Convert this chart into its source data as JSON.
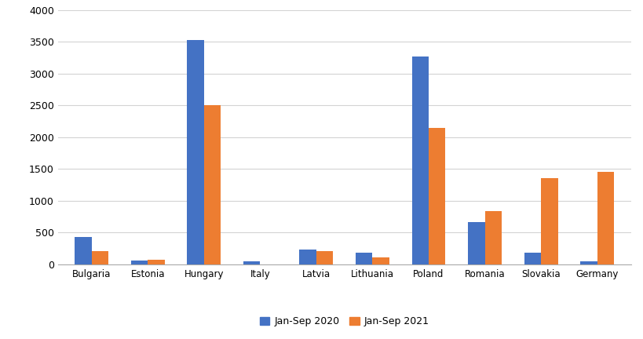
{
  "categories": [
    "Bulgaria",
    "Estonia",
    "Hungary",
    "Italy",
    "Latvia",
    "Lithuania",
    "Poland",
    "Romania",
    "Slovakia",
    "Germany"
  ],
  "jan_sep_2020": [
    430,
    65,
    3530,
    45,
    230,
    185,
    3270,
    670,
    180,
    55
  ],
  "jan_sep_2021": [
    205,
    70,
    2500,
    0,
    215,
    115,
    2150,
    840,
    1360,
    1460
  ],
  "color_2020": "#4472C4",
  "color_2021": "#ED7D31",
  "ylim": [
    0,
    4000
  ],
  "yticks": [
    0,
    500,
    1000,
    1500,
    2000,
    2500,
    3000,
    3500,
    4000
  ],
  "legend_2020": "Jan-Sep 2020",
  "legend_2021": "Jan-Sep 2021",
  "background_color": "#ffffff",
  "grid_color": "#d3d3d3",
  "bar_width": 0.3,
  "figsize": [
    8.2,
    4.32
  ],
  "dpi": 100
}
